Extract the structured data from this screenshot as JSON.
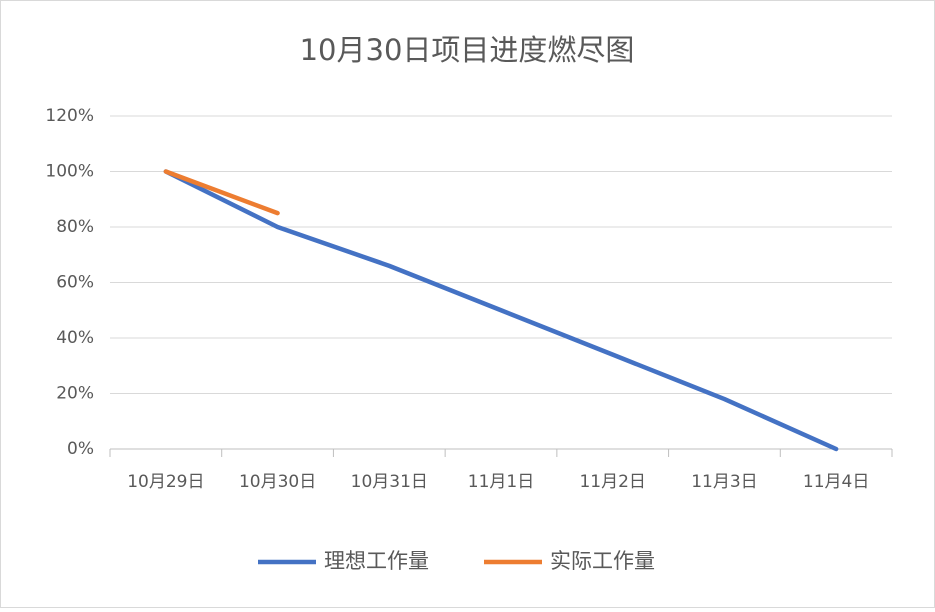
{
  "chart_data": {
    "type": "line",
    "title": "10月30日项目进度燃尽图",
    "categories": [
      "10月29日",
      "10月30日",
      "10月31日",
      "11月1日",
      "11月2日",
      "11月3日",
      "11月4日"
    ],
    "series": [
      {
        "name": "理想工作量",
        "color": "#4472c4",
        "values": [
          100,
          80,
          66,
          50,
          34,
          18,
          0
        ]
      },
      {
        "name": "实际工作量",
        "color": "#ed7d31",
        "values": [
          100,
          85,
          null,
          null,
          null,
          null,
          null
        ]
      }
    ],
    "ylim": [
      0,
      120
    ],
    "yticks": [
      {
        "value": 0,
        "label": "0%"
      },
      {
        "value": 20,
        "label": "20%"
      },
      {
        "value": 40,
        "label": "40%"
      },
      {
        "value": 60,
        "label": "60%"
      },
      {
        "value": 80,
        "label": "80%"
      },
      {
        "value": 100,
        "label": "100%"
      },
      {
        "value": 120,
        "label": "120%"
      }
    ],
    "grid": true,
    "legend": "bottom"
  }
}
